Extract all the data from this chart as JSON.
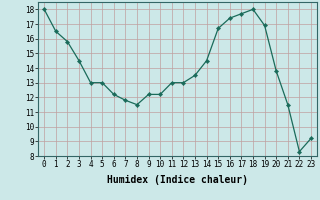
{
  "x": [
    0,
    1,
    2,
    3,
    4,
    5,
    6,
    7,
    8,
    9,
    10,
    11,
    12,
    13,
    14,
    15,
    16,
    17,
    18,
    19,
    20,
    21,
    22,
    23
  ],
  "y": [
    18,
    16.5,
    15.8,
    14.5,
    13,
    13,
    12.2,
    11.8,
    11.5,
    12.2,
    12.2,
    13,
    13,
    13.5,
    14.5,
    16.7,
    17.4,
    17.7,
    18,
    16.9,
    13.8,
    11.5,
    8.3,
    9.2
  ],
  "line_color": "#1a6b5a",
  "marker": "D",
  "marker_size": 2.2,
  "bg_color": "#cce8e8",
  "grid_color": "#c0a0a0",
  "xlabel": "Humidex (Indice chaleur)",
  "ylim": [
    8,
    18.5
  ],
  "xlim": [
    -0.5,
    23.5
  ],
  "yticks": [
    8,
    9,
    10,
    11,
    12,
    13,
    14,
    15,
    16,
    17,
    18
  ],
  "xticks": [
    0,
    1,
    2,
    3,
    4,
    5,
    6,
    7,
    8,
    9,
    10,
    11,
    12,
    13,
    14,
    15,
    16,
    17,
    18,
    19,
    20,
    21,
    22,
    23
  ],
  "tick_fontsize": 5.5,
  "xlabel_fontsize": 7
}
